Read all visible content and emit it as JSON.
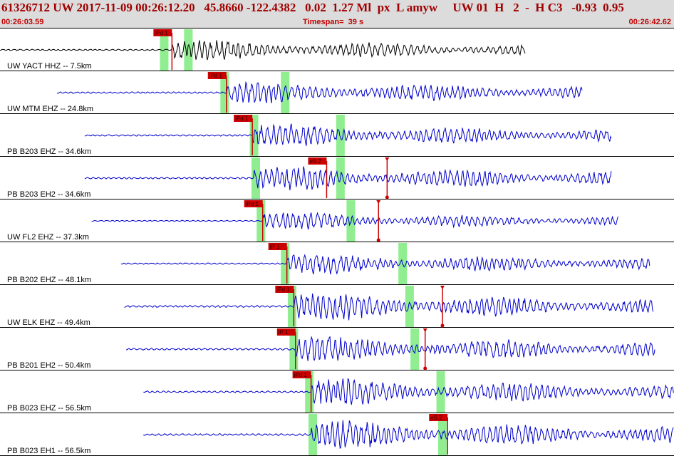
{
  "header": {
    "title": "61326712 UW 2017-11-09 00:26:12.20   45.8660 -122.4382   0.02  1.27 Ml  px  L amyw     UW 01  H   2  -  H C3   -0.93  0.95",
    "start_time": "00:26:03.59",
    "timespan": "Timespan=  39 s",
    "end_time": "00:26:42.62"
  },
  "colors": {
    "header_bg": "#dcdcdc",
    "title": "#a00000",
    "trace_first": "#000000",
    "trace": "#0000cc",
    "pick": "#cc0000",
    "window": "#90ee90"
  },
  "chart_data": {
    "type": "line",
    "title": "",
    "x_range": [
      0,
      39
    ],
    "traces": [
      {
        "label": "UW YACT HHZ -- 7.5km",
        "start": 0.0,
        "end": 30.4,
        "picks": [
          {
            "t": 9.95,
            "label": "iPd 1",
            "pos": "top"
          }
        ],
        "windows": [
          9.5,
          10.9
        ],
        "amp": 0.55,
        "onset": 9.95
      },
      {
        "label": "UW MTM EHZ -- 24.8km",
        "start": 3.3,
        "end": 33.7,
        "picks": [
          {
            "t": 13.1,
            "label": "iPd 1",
            "pos": "top"
          }
        ],
        "windows": [
          13.0,
          16.5
        ],
        "amp": 0.6,
        "onset": 13.1
      },
      {
        "label": "PB B203 EHZ -- 34.6km",
        "start": 4.9,
        "end": 35.4,
        "picks": [
          {
            "t": 14.6,
            "label": "iPd 1",
            "pos": "top"
          }
        ],
        "windows": [
          14.7,
          19.7
        ],
        "amp": 0.6,
        "onset": 14.6
      },
      {
        "label": "PB B203 EH2 -- 34.6km",
        "start": 4.9,
        "end": 35.4,
        "picks": [
          {
            "t": 18.9,
            "label": "eS 2",
            "pos": "top"
          },
          {
            "t": 22.4,
            "label": "",
            "pos": "mark"
          }
        ],
        "windows": [
          14.8,
          19.7
        ],
        "amp": 0.65,
        "onset": 14.7
      },
      {
        "label": "UW FL2 EHZ -- 37.3km",
        "start": 5.3,
        "end": 35.8,
        "picks": [
          {
            "t": 15.2,
            "label": "iPd 1",
            "pos": "top"
          },
          {
            "t": 21.9,
            "label": "",
            "pos": "mark"
          }
        ],
        "windows": [
          15.1,
          20.3
        ],
        "amp": 0.45,
        "onset": 15.2
      },
      {
        "label": "PB B202 EHZ -- 48.1km",
        "start": 7.0,
        "end": 37.6,
        "picks": [
          {
            "t": 16.6,
            "label": "iP 1",
            "pos": "top"
          }
        ],
        "windows": [
          16.5,
          23.3
        ],
        "amp": 0.55,
        "onset": 16.6
      },
      {
        "label": "UW ELK EHZ -- 49.4km",
        "start": 7.2,
        "end": 37.8,
        "picks": [
          {
            "t": 17.0,
            "label": "iPd 1",
            "pos": "top"
          },
          {
            "t": 25.6,
            "label": "",
            "pos": "mark"
          }
        ],
        "windows": [
          16.9,
          23.7
        ],
        "amp": 0.75,
        "onset": 17.0
      },
      {
        "label": "PB B201 EH2 -- 50.4km",
        "start": 7.3,
        "end": 37.9,
        "picks": [
          {
            "t": 17.1,
            "label": "iP 1",
            "pos": "top"
          },
          {
            "t": 24.6,
            "label": "",
            "pos": "mark"
          }
        ],
        "windows": [
          17.0,
          24.0
        ],
        "amp": 0.7,
        "onset": 17.1
      },
      {
        "label": "PB B023 EHZ -- 56.5km",
        "start": 8.3,
        "end": 39.0,
        "picks": [
          {
            "t": 18.0,
            "label": "iPd 1",
            "pos": "top"
          }
        ],
        "windows": [
          17.9,
          25.5
        ],
        "amp": 0.7,
        "onset": 18.0
      },
      {
        "label": "PB B023 EH1 -- 56.5km",
        "start": 8.3,
        "end": 39.0,
        "picks": [
          {
            "t": 25.9,
            "label": "eS 2",
            "pos": "top"
          }
        ],
        "windows": [
          18.1,
          25.6
        ],
        "amp": 0.75,
        "onset": 18.0
      }
    ]
  }
}
